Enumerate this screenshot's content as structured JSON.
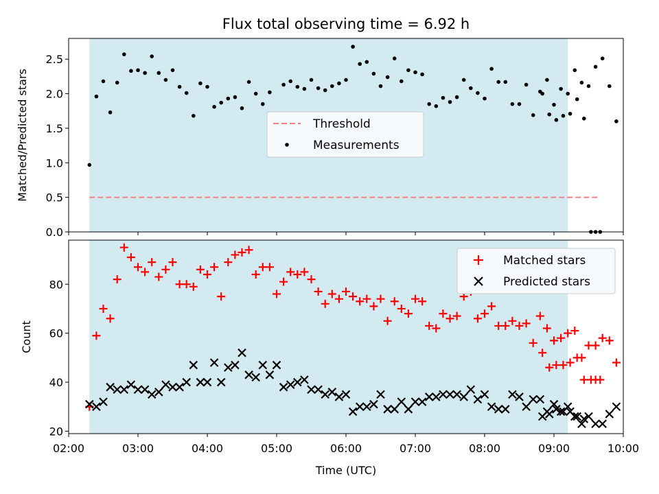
{
  "figure": {
    "title": "Flux total observing time = 6.92 h"
  },
  "colors": {
    "band": "#d4eaf1",
    "threshold": "#f08080",
    "matched": "#ff0000",
    "predicted": "#000000",
    "measurement": "#000000"
  },
  "chart_data": [
    {
      "type": "scatter",
      "ylabel": "Matched/Predicted stars",
      "xlim": [
        "02:00",
        "10:00"
      ],
      "ylim": [
        0,
        2.8
      ],
      "yticks": [
        "0.0",
        "0.5",
        "1.0",
        "1.5",
        "2.0",
        "2.5"
      ],
      "shaded_band": [
        "02:18",
        "09:12"
      ],
      "legend": {
        "placement": "center",
        "entries": [
          "Threshold",
          "Measurements"
        ]
      },
      "threshold": {
        "name": "Threshold",
        "y": 0.5,
        "x_range": [
          "02:18",
          "09:39"
        ]
      },
      "series": [
        {
          "name": "Measurements",
          "points": [
            [
              "02:18",
              0.97
            ],
            [
              "02:24",
              1.96
            ],
            [
              "02:30",
              2.18
            ],
            [
              "02:36",
              1.73
            ],
            [
              "02:42",
              2.16
            ],
            [
              "02:48",
              2.57
            ],
            [
              "02:54",
              2.33
            ],
            [
              "03:00",
              2.34
            ],
            [
              "03:06",
              2.3
            ],
            [
              "03:12",
              2.54
            ],
            [
              "03:18",
              2.3
            ],
            [
              "03:24",
              2.2
            ],
            [
              "03:30",
              2.34
            ],
            [
              "03:36",
              2.1
            ],
            [
              "03:42",
              2.01
            ],
            [
              "03:48",
              1.68
            ],
            [
              "03:54",
              2.15
            ],
            [
              "04:00",
              2.1
            ],
            [
              "04:06",
              1.81
            ],
            [
              "04:12",
              1.87
            ],
            [
              "04:18",
              1.93
            ],
            [
              "04:24",
              1.95
            ],
            [
              "04:30",
              1.79
            ],
            [
              "04:36",
              2.17
            ],
            [
              "04:42",
              2.0
            ],
            [
              "04:48",
              1.85
            ],
            [
              "04:54",
              2.02
            ],
            [
              "05:00",
              1.61
            ],
            [
              "05:06",
              2.13
            ],
            [
              "05:12",
              2.18
            ],
            [
              "05:18",
              2.1
            ],
            [
              "05:24",
              2.07
            ],
            [
              "05:30",
              2.2
            ],
            [
              "05:36",
              2.08
            ],
            [
              "05:42",
              2.05
            ],
            [
              "05:48",
              2.11
            ],
            [
              "05:54",
              2.15
            ],
            [
              "06:00",
              2.2
            ],
            [
              "06:06",
              2.68
            ],
            [
              "06:12",
              2.43
            ],
            [
              "06:18",
              2.46
            ],
            [
              "06:24",
              2.29
            ],
            [
              "06:30",
              2.11
            ],
            [
              "06:36",
              2.24
            ],
            [
              "06:42",
              2.51
            ],
            [
              "06:48",
              2.18
            ],
            [
              "06:54",
              2.34
            ],
            [
              "07:00",
              2.31
            ],
            [
              "07:06",
              2.28
            ],
            [
              "07:12",
              1.85
            ],
            [
              "07:18",
              1.82
            ],
            [
              "07:24",
              1.94
            ],
            [
              "07:30",
              1.88
            ],
            [
              "07:36",
              1.95
            ],
            [
              "07:42",
              2.2
            ],
            [
              "07:48",
              2.08
            ],
            [
              "07:54",
              2.01
            ],
            [
              "08:00",
              1.93
            ],
            [
              "08:06",
              2.36
            ],
            [
              "08:12",
              2.17
            ],
            [
              "08:18",
              2.17
            ],
            [
              "08:24",
              1.85
            ],
            [
              "08:30",
              1.85
            ],
            [
              "08:36",
              2.13
            ],
            [
              "08:42",
              1.69
            ],
            [
              "08:48",
              2.03
            ],
            [
              "08:54",
              2.2
            ],
            [
              "09:00",
              1.84
            ],
            [
              "09:06",
              2.07
            ],
            [
              "09:12",
              2.0
            ],
            [
              "09:18",
              2.34
            ],
            [
              "09:24",
              2.16
            ],
            [
              "09:30",
              2.11
            ],
            [
              "09:36",
              2.39
            ],
            [
              "09:42",
              2.51
            ],
            [
              "09:48",
              2.11
            ],
            [
              "09:54",
              1.6
            ],
            [
              "08:50",
              2.0
            ],
            [
              "08:56",
              1.7
            ],
            [
              "09:02",
              1.62
            ],
            [
              "09:08",
              1.68
            ],
            [
              "09:14",
              1.71
            ],
            [
              "09:20",
              1.92
            ],
            [
              "09:26",
              1.64
            ],
            [
              "09:32",
              0.0
            ],
            [
              "09:36",
              0.0
            ],
            [
              "09:40",
              0.0
            ]
          ]
        }
      ]
    },
    {
      "type": "scatter",
      "xlabel": "Time (UTC)",
      "ylabel": "Count",
      "xlim": [
        "02:00",
        "10:00"
      ],
      "ylim": [
        19,
        98
      ],
      "xticks": [
        "02:00",
        "03:00",
        "04:00",
        "05:00",
        "06:00",
        "07:00",
        "08:00",
        "09:00",
        "10:00"
      ],
      "yticks": [
        "20",
        "40",
        "60",
        "80"
      ],
      "shaded_band": [
        "02:18",
        "09:12"
      ],
      "legend": {
        "placement": "top-right",
        "entries": [
          "Matched stars",
          "Predicted stars"
        ]
      },
      "series": [
        {
          "name": "Matched stars",
          "marker": "+",
          "points": [
            [
              "02:18",
              30
            ],
            [
              "02:24",
              59
            ],
            [
              "02:30",
              70
            ],
            [
              "02:36",
              66
            ],
            [
              "02:42",
              82
            ],
            [
              "02:48",
              95
            ],
            [
              "02:54",
              91
            ],
            [
              "03:00",
              87
            ],
            [
              "03:06",
              85
            ],
            [
              "03:12",
              89
            ],
            [
              "03:18",
              83
            ],
            [
              "03:24",
              86
            ],
            [
              "03:30",
              89
            ],
            [
              "03:36",
              80
            ],
            [
              "03:42",
              80
            ],
            [
              "03:48",
              79
            ],
            [
              "03:54",
              86
            ],
            [
              "04:00",
              84
            ],
            [
              "04:06",
              87
            ],
            [
              "04:12",
              75
            ],
            [
              "04:18",
              89
            ],
            [
              "04:24",
              92
            ],
            [
              "04:30",
              93
            ],
            [
              "04:36",
              94
            ],
            [
              "04:42",
              84
            ],
            [
              "04:48",
              87
            ],
            [
              "04:54",
              87
            ],
            [
              "05:00",
              76
            ],
            [
              "05:06",
              81
            ],
            [
              "05:12",
              85
            ],
            [
              "05:18",
              84
            ],
            [
              "05:24",
              85
            ],
            [
              "05:30",
              82
            ],
            [
              "05:36",
              77
            ],
            [
              "05:42",
              72
            ],
            [
              "05:48",
              76
            ],
            [
              "05:54",
              74
            ],
            [
              "06:00",
              77
            ],
            [
              "06:06",
              75
            ],
            [
              "06:12",
              73
            ],
            [
              "06:18",
              74
            ],
            [
              "06:24",
              71
            ],
            [
              "06:30",
              74
            ],
            [
              "06:36",
              65
            ],
            [
              "06:42",
              73
            ],
            [
              "06:48",
              70
            ],
            [
              "06:54",
              68
            ],
            [
              "07:00",
              74
            ],
            [
              "07:06",
              73
            ],
            [
              "07:12",
              63
            ],
            [
              "07:18",
              62
            ],
            [
              "07:24",
              68
            ],
            [
              "07:30",
              66
            ],
            [
              "07:36",
              67
            ],
            [
              "07:42",
              75
            ],
            [
              "07:48",
              77
            ],
            [
              "07:54",
              66
            ],
            [
              "08:00",
              68
            ],
            [
              "08:06",
              71
            ],
            [
              "08:12",
              63
            ],
            [
              "08:18",
              63
            ],
            [
              "08:24",
              65
            ],
            [
              "08:30",
              63
            ],
            [
              "08:36",
              64
            ],
            [
              "08:42",
              56
            ],
            [
              "08:48",
              67
            ],
            [
              "08:54",
              62
            ],
            [
              "09:00",
              57
            ],
            [
              "09:06",
              58
            ],
            [
              "09:12",
              60
            ],
            [
              "09:18",
              61
            ],
            [
              "09:24",
              50
            ],
            [
              "09:30",
              55
            ],
            [
              "09:36",
              55
            ],
            [
              "09:42",
              58
            ],
            [
              "09:48",
              57
            ],
            [
              "09:54",
              48
            ],
            [
              "08:50",
              52
            ],
            [
              "08:56",
              46
            ],
            [
              "09:02",
              47
            ],
            [
              "09:08",
              47
            ],
            [
              "09:14",
              48
            ],
            [
              "09:20",
              50
            ],
            [
              "09:26",
              41
            ],
            [
              "09:32",
              41
            ],
            [
              "09:36",
              41
            ],
            [
              "09:40",
              41
            ]
          ]
        },
        {
          "name": "Predicted stars",
          "marker": "x",
          "points": [
            [
              "02:18",
              31
            ],
            [
              "02:24",
              30
            ],
            [
              "02:30",
              32
            ],
            [
              "02:36",
              38
            ],
            [
              "02:42",
              37
            ],
            [
              "02:48",
              37
            ],
            [
              "02:54",
              39
            ],
            [
              "03:00",
              37
            ],
            [
              "03:06",
              37
            ],
            [
              "03:12",
              35
            ],
            [
              "03:18",
              36
            ],
            [
              "03:24",
              39
            ],
            [
              "03:30",
              38
            ],
            [
              "03:36",
              38
            ],
            [
              "03:42",
              40
            ],
            [
              "03:48",
              47
            ],
            [
              "03:54",
              40
            ],
            [
              "04:00",
              40
            ],
            [
              "04:06",
              48
            ],
            [
              "04:12",
              40
            ],
            [
              "04:18",
              46
            ],
            [
              "04:24",
              47
            ],
            [
              "04:30",
              52
            ],
            [
              "04:36",
              43
            ],
            [
              "04:42",
              42
            ],
            [
              "04:48",
              47
            ],
            [
              "04:54",
              43
            ],
            [
              "05:00",
              47
            ],
            [
              "05:06",
              38
            ],
            [
              "05:12",
              39
            ],
            [
              "05:18",
              40
            ],
            [
              "05:24",
              41
            ],
            [
              "05:30",
              37
            ],
            [
              "05:36",
              37
            ],
            [
              "05:42",
              35
            ],
            [
              "05:48",
              36
            ],
            [
              "05:54",
              34
            ],
            [
              "06:00",
              35
            ],
            [
              "06:06",
              28
            ],
            [
              "06:12",
              30
            ],
            [
              "06:18",
              30
            ],
            [
              "06:24",
              31
            ],
            [
              "06:30",
              35
            ],
            [
              "06:36",
              29
            ],
            [
              "06:42",
              29
            ],
            [
              "06:48",
              32
            ],
            [
              "06:54",
              29
            ],
            [
              "07:00",
              32
            ],
            [
              "07:06",
              32
            ],
            [
              "07:12",
              34
            ],
            [
              "07:18",
              34
            ],
            [
              "07:24",
              35
            ],
            [
              "07:30",
              35
            ],
            [
              "07:36",
              35
            ],
            [
              "07:42",
              34
            ],
            [
              "07:48",
              37
            ],
            [
              "07:54",
              33
            ],
            [
              "08:00",
              35
            ],
            [
              "08:06",
              30
            ],
            [
              "08:12",
              29
            ],
            [
              "08:18",
              29
            ],
            [
              "08:24",
              35
            ],
            [
              "08:30",
              34
            ],
            [
              "08:36",
              30
            ],
            [
              "08:42",
              33
            ],
            [
              "08:48",
              33
            ],
            [
              "08:54",
              28
            ],
            [
              "09:00",
              31
            ],
            [
              "09:06",
              28
            ],
            [
              "09:12",
              30
            ],
            [
              "09:18",
              26
            ],
            [
              "09:24",
              23
            ],
            [
              "09:30",
              26
            ],
            [
              "09:36",
              23
            ],
            [
              "09:42",
              23
            ],
            [
              "09:48",
              27
            ],
            [
              "09:54",
              30
            ],
            [
              "08:50",
              26
            ],
            [
              "08:56",
              27
            ],
            [
              "09:02",
              29
            ],
            [
              "09:08",
              28
            ],
            [
              "09:14",
              28
            ],
            [
              "09:20",
              26
            ],
            [
              "09:26",
              25
            ]
          ]
        }
      ]
    }
  ]
}
